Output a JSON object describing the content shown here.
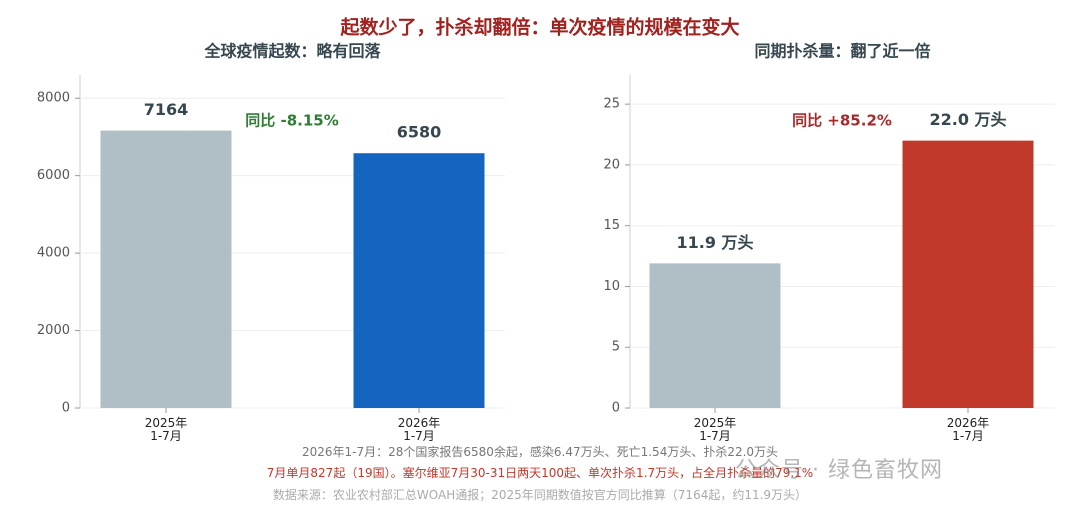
{
  "title": "起数少了，扑杀却翻倍：单次疫情的规模在变大",
  "chart_data": [
    {
      "type": "bar",
      "title": "全球疫情起数：略有回落",
      "categories": [
        "2025年\n1-7月",
        "2026年\n1-7月"
      ],
      "values": [
        7164,
        6580
      ],
      "colors": [
        "#b0bec5",
        "#1565c0"
      ],
      "ylim": [
        0,
        8600
      ],
      "yticks": [
        0,
        2000,
        4000,
        6000,
        8000
      ],
      "grid": true,
      "annotation": "同比 -8.15%",
      "annotation_color": "#2e7d32"
    },
    {
      "type": "bar",
      "title": "同期扑杀量：翻了近一倍",
      "categories": [
        "2025年\n1-7月",
        "2026年\n1-7月"
      ],
      "values": [
        11.9,
        22.0
      ],
      "value_labels": [
        "11.9 万头",
        "22.0 万头"
      ],
      "colors": [
        "#b0bec5",
        "#c0392b"
      ],
      "ylim": [
        0,
        27.4
      ],
      "yticks": [
        0,
        5,
        10,
        15,
        20,
        25
      ],
      "grid": true,
      "annotation": "同比 +85.2%",
      "annotation_color": "#a52a2a"
    }
  ],
  "notes": [
    "2026年1-7月：28个国家报告6580余起，感染6.47万头、死亡1.54万头、扑杀22.0万头",
    "7月单月827起（19国）。塞尔维亚7月30-31日两天100起、单次扑杀1.7万头，占全月扑杀量的79.1%",
    "数据来源：农业农村部汇总WOAH通报；2025年同期数值按官方同比推算（7164起，约11.9万头）"
  ],
  "watermark": "公众号 · 绿色畜牧网"
}
